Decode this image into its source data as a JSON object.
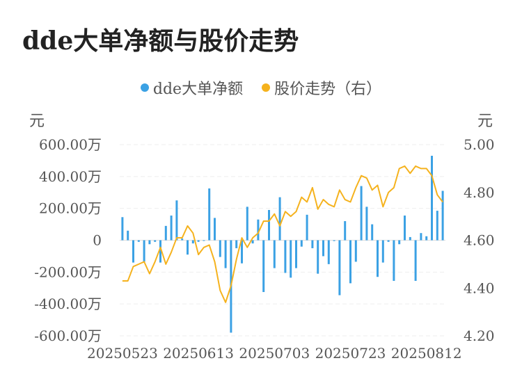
{
  "chart_data": {
    "type": "bar+line",
    "title": "dde大单净额与股价走势",
    "legend": [
      "dde大单净额",
      "股价走势（右）"
    ],
    "left_unit": "元",
    "right_unit": "元",
    "y_left_ticks": [
      "600.00万",
      "400.00万",
      "200.00万",
      "0",
      "-200.00万",
      "-400.00万",
      "-600.00万"
    ],
    "y_left_range": [
      -600,
      600
    ],
    "y_right_ticks": [
      "5.00",
      "4.80",
      "4.60",
      "4.40",
      "4.20"
    ],
    "y_right_range": [
      4.2,
      5.0
    ],
    "x_tick_labels": [
      "20250523",
      "20250613",
      "20250703",
      "20250723",
      "20250812"
    ],
    "x_tick_index": [
      0,
      14,
      28,
      42,
      56
    ],
    "colors": {
      "bar": "#3ba1e4",
      "line": "#f5b21d"
    },
    "dde_values": [
      145,
      60,
      -140,
      -10,
      -135,
      -25,
      -10,
      -140,
      90,
      155,
      250,
      10,
      -90,
      -20,
      -10,
      0,
      325,
      140,
      -105,
      -175,
      -580,
      -50,
      -145,
      210,
      -20,
      130,
      -325,
      190,
      -175,
      270,
      -205,
      -235,
      -175,
      -40,
      160,
      -50,
      -210,
      -100,
      -150,
      -5,
      -345,
      120,
      -270,
      -135,
      340,
      210,
      100,
      -230,
      -140,
      -10,
      -255,
      -25,
      155,
      20,
      -255,
      45,
      25,
      530,
      185,
      310
    ],
    "price_values": [
      4.43,
      4.43,
      4.49,
      4.5,
      4.51,
      4.46,
      4.51,
      4.57,
      4.5,
      4.55,
      4.61,
      4.61,
      4.66,
      4.63,
      4.54,
      4.57,
      4.58,
      4.51,
      4.39,
      4.34,
      4.41,
      4.52,
      4.61,
      4.57,
      4.61,
      4.63,
      4.68,
      4.68,
      4.71,
      4.66,
      4.72,
      4.7,
      4.72,
      4.78,
      4.76,
      4.82,
      4.73,
      4.77,
      4.75,
      4.74,
      4.81,
      4.77,
      4.76,
      4.82,
      4.87,
      4.86,
      4.81,
      4.83,
      4.74,
      4.8,
      4.82,
      4.9,
      4.91,
      4.88,
      4.91,
      4.9,
      4.9,
      4.87,
      4.79,
      4.76
    ]
  }
}
